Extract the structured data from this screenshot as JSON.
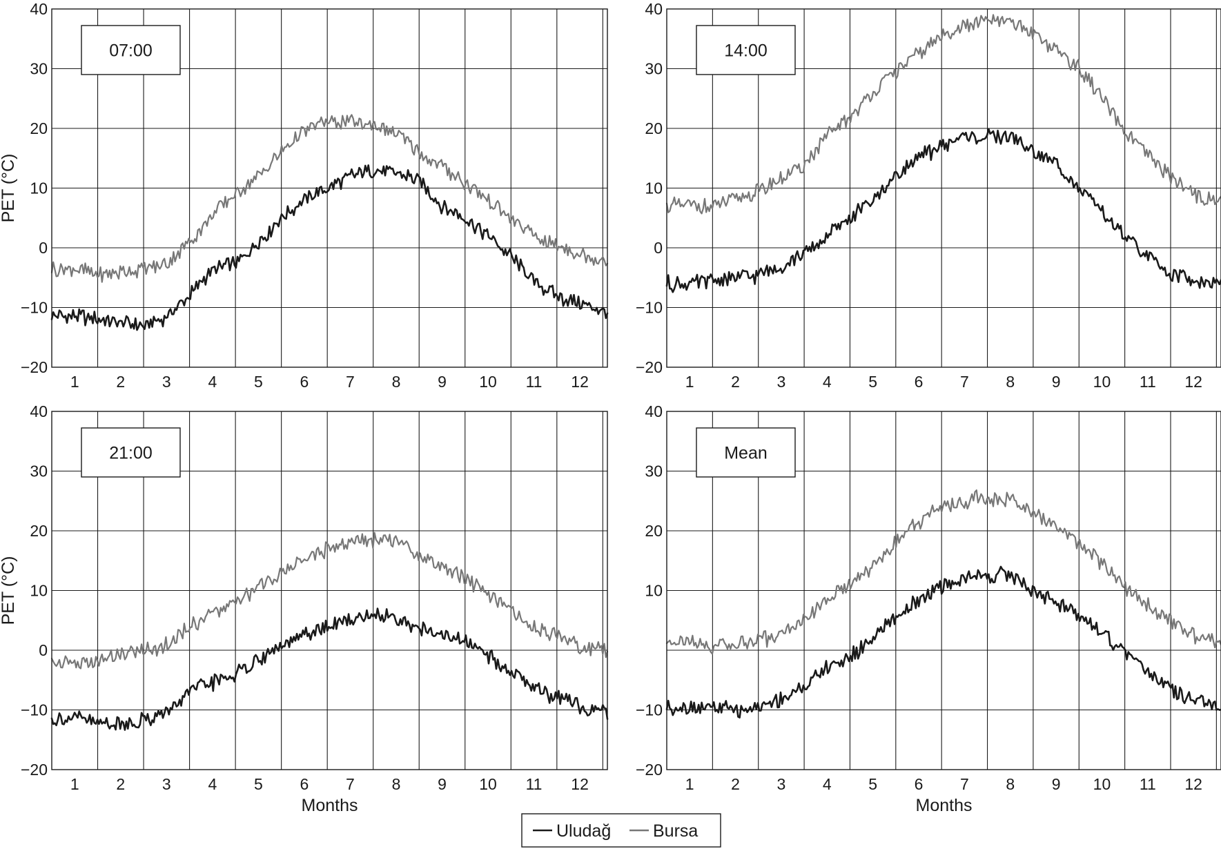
{
  "chart_data": [
    {
      "type": "line",
      "panel_label": "07:00",
      "xlabel": "",
      "ylabel": "PET (°C)",
      "ylim": [
        -20,
        40
      ],
      "yticks": [
        "40",
        "30",
        "20",
        "10",
        "0",
        "−10",
        "−20"
      ],
      "xticks": [
        "1",
        "2",
        "3",
        "4",
        "5",
        "6",
        "7",
        "8",
        "9",
        "10",
        "11",
        "12"
      ],
      "grid": true,
      "x": [
        1,
        1.5,
        2,
        2.5,
        3,
        3.5,
        4,
        4.5,
        5,
        5.5,
        6,
        6.5,
        7,
        7.5,
        8,
        8.5,
        9,
        9.5,
        10,
        10.5,
        11,
        11.5,
        12,
        12.5
      ],
      "series": [
        {
          "name": "Uludağ",
          "color": "#1a1a1a",
          "values": [
            -11.5,
            -12,
            -12.5,
            -13,
            -11.5,
            -8,
            -4,
            -2.5,
            1,
            5,
            8,
            10,
            12,
            13,
            12.5,
            11,
            7,
            5,
            2,
            -1.5,
            -5.5,
            -8,
            -9.5,
            -10.5
          ]
        },
        {
          "name": "Bursa",
          "color": "#777777",
          "values": [
            -3.5,
            -4.5,
            -4,
            -3.5,
            -2.5,
            1,
            5.5,
            9,
            12,
            16,
            19.5,
            21,
            21,
            20.5,
            19,
            16,
            13.5,
            11,
            8,
            5,
            2,
            0.5,
            -1,
            -2
          ]
        }
      ]
    },
    {
      "type": "line",
      "panel_label": "14:00",
      "xlabel": "",
      "ylabel": "",
      "ylim": [
        -20,
        40
      ],
      "yticks": [
        "40",
        "30",
        "20",
        "10",
        "0",
        "−10",
        "−20"
      ],
      "xticks": [
        "1",
        "2",
        "3",
        "4",
        "5",
        "6",
        "7",
        "8",
        "9",
        "10",
        "11",
        "12"
      ],
      "grid": true,
      "x": [
        1,
        1.5,
        2,
        2.5,
        3,
        3.5,
        4,
        4.5,
        5,
        5.5,
        6,
        6.5,
        7,
        7.5,
        8,
        8.5,
        9,
        9.5,
        10,
        10.5,
        11,
        11.5,
        12,
        12.5
      ],
      "series": [
        {
          "name": "Uludağ",
          "color": "#1a1a1a",
          "values": [
            -6,
            -5.5,
            -5,
            -4.5,
            -3,
            -1,
            2,
            5,
            8,
            12,
            15,
            17,
            18.5,
            18.5,
            18.5,
            16,
            14,
            10,
            6,
            2,
            -1.5,
            -4,
            -5.5,
            -6
          ]
        },
        {
          "name": "Bursa",
          "color": "#777777",
          "values": [
            7,
            7,
            8,
            9.5,
            11.5,
            14,
            18.5,
            22,
            26,
            29.5,
            32.5,
            35.5,
            37,
            38,
            37.5,
            36,
            33,
            30,
            25,
            19.5,
            15.5,
            12,
            9,
            8
          ]
        }
      ]
    },
    {
      "type": "line",
      "panel_label": "21:00",
      "xlabel": "Months",
      "ylabel": "PET (°C)",
      "ylim": [
        -20,
        40
      ],
      "yticks": [
        "40",
        "30",
        "20",
        "10",
        "0",
        "−10",
        "−20"
      ],
      "xticks": [
        "1",
        "2",
        "3",
        "4",
        "5",
        "6",
        "7",
        "8",
        "9",
        "10",
        "11",
        "12"
      ],
      "grid": true,
      "x": [
        1,
        1.5,
        2,
        2.5,
        3,
        3.5,
        4,
        4.5,
        5,
        5.5,
        6,
        6.5,
        7,
        7.5,
        8,
        8.5,
        9,
        9.5,
        10,
        10.5,
        11,
        11.5,
        12,
        12.5
      ],
      "series": [
        {
          "name": "Uludağ",
          "color": "#1a1a1a",
          "values": [
            -11.5,
            -12,
            -12.5,
            -11.5,
            -10.5,
            -7,
            -5.5,
            -4,
            -1.5,
            0.5,
            2.5,
            4,
            5,
            6,
            5.5,
            3.5,
            2.5,
            1.5,
            -1,
            -3.5,
            -6,
            -8,
            -9.5,
            -10.5
          ]
        },
        {
          "name": "Bursa",
          "color": "#777777",
          "values": [
            -2,
            -2,
            -0.5,
            0,
            1,
            4,
            6,
            8,
            10.5,
            13,
            15.5,
            17,
            18,
            18.5,
            18,
            16,
            14,
            12,
            9.5,
            6.5,
            4,
            2.5,
            0.5,
            0
          ]
        }
      ]
    },
    {
      "type": "line",
      "panel_label": "Mean",
      "xlabel": "Months",
      "ylabel": "",
      "ylim": [
        -20,
        40
      ],
      "yticks": [
        "40",
        "30",
        "20",
        "10",
        "",
        "−10",
        "−20"
      ],
      "xticks": [
        "1",
        "2",
        "3",
        "4",
        "5",
        "6",
        "7",
        "8",
        "9",
        "10",
        "11",
        "12"
      ],
      "grid": true,
      "x": [
        1,
        1.5,
        2,
        2.5,
        3,
        3.5,
        4,
        4.5,
        5,
        5.5,
        6,
        6.5,
        7,
        7.5,
        8,
        8.5,
        9,
        9.5,
        10,
        10.5,
        11,
        11.5,
        12,
        12.5
      ],
      "series": [
        {
          "name": "Uludağ",
          "color": "#1a1a1a",
          "values": [
            -9.5,
            -9.5,
            -10,
            -9.5,
            -8,
            -6,
            -3,
            -1,
            2,
            5.5,
            8.5,
            10.5,
            12,
            12.5,
            12.5,
            10,
            8,
            6,
            3,
            -0.5,
            -3.5,
            -6.5,
            -8.5,
            -9.5
          ]
        },
        {
          "name": "Bursa",
          "color": "#777777",
          "values": [
            1.5,
            0.5,
            1,
            1.5,
            3,
            5,
            8.5,
            11,
            14,
            18,
            21.5,
            24,
            25,
            25.5,
            25,
            23,
            20.5,
            18,
            14.5,
            10.5,
            7.5,
            5,
            2.5,
            1.5
          ]
        }
      ]
    }
  ],
  "legend": {
    "placement": "bottom-center",
    "entries": [
      {
        "label": "Uludağ",
        "color": "#1a1a1a"
      },
      {
        "label": "Bursa",
        "color": "#777777"
      }
    ]
  }
}
